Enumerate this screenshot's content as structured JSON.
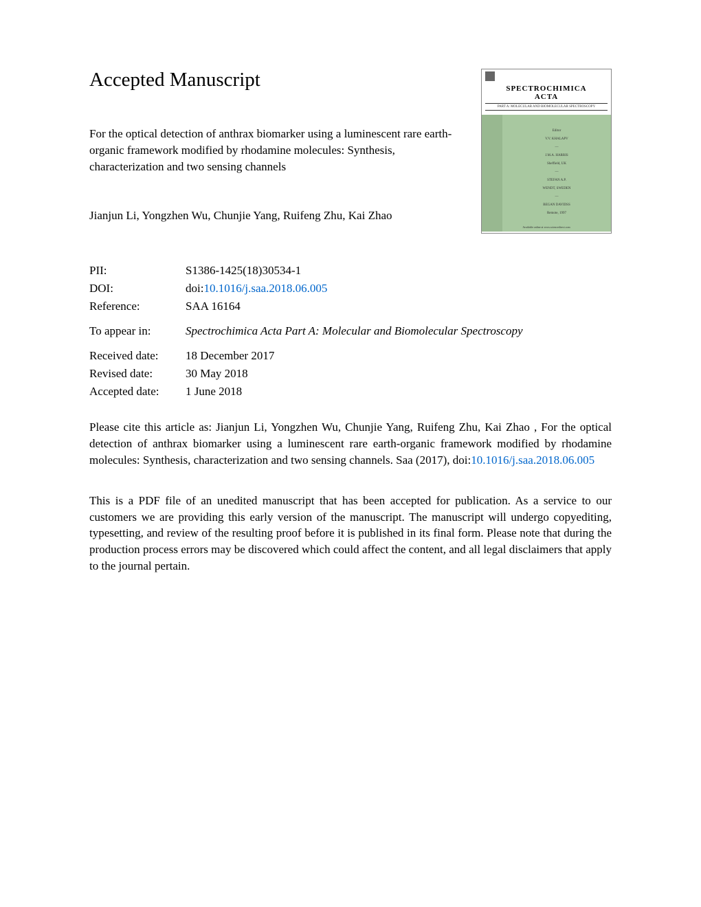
{
  "page_title": "Accepted Manuscript",
  "article_title": "For the optical detection of anthrax biomarker using a luminescent rare earth-organic framework modified by rhodamine molecules: Synthesis, characterization and two sensing channels",
  "authors": "Jianjun Li, Yongzhen Wu, Chunjie Yang, Ruifeng Zhu, Kai Zhao",
  "journal_cover": {
    "journal_name_line1": "SPECTROCHIMICA",
    "journal_name_line2": "ACTA",
    "subtitle": "PART A: MOLECULAR AND BIOMOLECULAR SPECTROSCOPY"
  },
  "meta": {
    "pii_label": "PII:",
    "pii_value": "S1386-1425(18)30534-1",
    "doi_label": "DOI:",
    "doi_prefix": "doi:",
    "doi_link": "10.1016/j.saa.2018.06.005",
    "reference_label": "Reference:",
    "reference_value": "SAA 16164",
    "appear_label": "To appear in:",
    "appear_value": "Spectrochimica Acta Part A: Molecular and Biomolecular Spectroscopy",
    "received_label": "Received date:",
    "received_value": "18 December 2017",
    "revised_label": "Revised date:",
    "revised_value": "30 May 2018",
    "accepted_label": "Accepted date:",
    "accepted_value": "1 June 2018"
  },
  "citation": {
    "text_before": "Please cite this article as: Jianjun Li, Yongzhen Wu, Chunjie Yang, Ruifeng Zhu, Kai Zhao , For the optical detection of anthrax biomarker using a luminescent rare earth-organic framework modified by rhodamine molecules: Synthesis, characterization and two sensing channels. Saa (2017), doi:",
    "link": "10.1016/j.saa.2018.06.005"
  },
  "disclaimer": "This is a PDF file of an unedited manuscript that has been accepted for publication. As a service to our customers we are providing this early version of the manuscript. The manuscript will undergo copyediting, typesetting, and review of the resulting proof before it is published in its final form. Please note that during the production process errors may be discovered which could affect the content, and all legal disclaimers that apply to the journal pertain."
}
